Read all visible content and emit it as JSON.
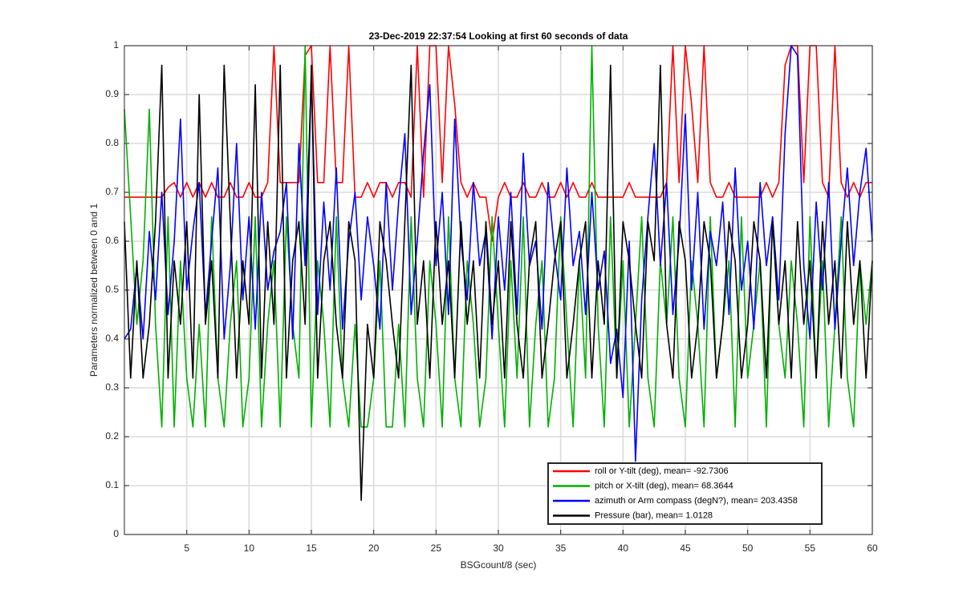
{
  "chart_data": {
    "type": "line",
    "title": "23-Dec-2019 22:37:54 Looking at first 60 seconds of data",
    "x_label": "BSGcount/8 (sec)",
    "y_label": "Parameters normalized between 0 and 1",
    "xlim": [
      0,
      60
    ],
    "xticks": [
      5,
      10,
      15,
      20,
      25,
      30,
      35,
      40,
      45,
      50,
      55,
      60
    ],
    "ylim": [
      0,
      1
    ],
    "yticks": [
      0,
      0.1,
      0.2,
      0.3,
      0.4,
      0.5,
      0.6,
      0.7,
      0.8,
      0.9,
      1
    ],
    "grid": true,
    "legend": "lower right",
    "x": [
      0,
      0.5,
      1,
      1.5,
      2,
      2.5,
      3,
      3.5,
      4,
      4.5,
      5,
      5.5,
      6,
      6.5,
      7,
      7.5,
      8,
      8.5,
      9,
      9.5,
      10,
      10.5,
      11,
      11.5,
      12,
      12.5,
      13,
      13.5,
      14,
      14.5,
      15,
      15.5,
      16,
      16.5,
      17,
      17.5,
      18,
      18.5,
      19,
      19.5,
      20,
      20.5,
      21,
      21.5,
      22,
      22.5,
      23,
      23.5,
      24,
      24.5,
      25,
      25.5,
      26,
      26.5,
      27,
      27.5,
      28,
      28.5,
      29,
      29.5,
      30,
      30.5,
      31,
      31.5,
      32,
      32.5,
      33,
      33.5,
      34,
      34.5,
      35,
      35.5,
      36,
      36.5,
      37,
      37.5,
      38,
      38.5,
      39,
      39.5,
      40,
      40.5,
      41,
      41.5,
      42,
      42.5,
      43,
      43.5,
      44,
      44.5,
      45,
      45.5,
      46,
      46.5,
      47,
      47.5,
      48,
      48.5,
      49,
      49.5,
      50,
      50.5,
      51,
      51.5,
      52,
      52.5,
      53,
      53.5,
      54,
      54.5,
      55,
      55.5,
      56,
      56.5,
      57,
      57.5,
      58,
      58.5,
      59,
      59.5,
      60
    ],
    "series": [
      {
        "name": "roll or Y-tilt (deg), mean= -92.7306",
        "color": "#ff0000",
        "values": [
          0.69,
          0.69,
          0.69,
          0.69,
          0.69,
          0.69,
          0.69,
          0.71,
          0.72,
          0.69,
          0.72,
          0.69,
          0.72,
          0.69,
          0.72,
          0.69,
          0.69,
          0.72,
          0.69,
          0.69,
          0.72,
          0.69,
          0.69,
          0.72,
          1,
          0.72,
          0.72,
          0.72,
          0.72,
          0.98,
          1,
          0.72,
          0.72,
          1,
          0.72,
          0.72,
          1,
          0.69,
          0.69,
          0.72,
          0.69,
          0.72,
          0.72,
          0.69,
          0.72,
          0.72,
          0.69,
          1,
          0.69,
          1,
          1,
          0.72,
          1,
          0.88,
          0.72,
          0.69,
          0.72,
          0.69,
          0.69,
          0.6,
          0.69,
          0.72,
          0.69,
          0.69,
          0.72,
          0.69,
          0.69,
          0.72,
          0.69,
          0.69,
          0.72,
          0.69,
          0.72,
          0.69,
          0.69,
          0.72,
          0.69,
          0.69,
          0.69,
          0.69,
          0.69,
          0.72,
          0.69,
          0.69,
          0.69,
          0.69,
          0.69,
          0.72,
          1,
          0.72,
          1,
          0.88,
          0.72,
          1,
          0.72,
          0.69,
          0.69,
          0.72,
          0.69,
          0.69,
          0.69,
          0.69,
          0.69,
          0.72,
          0.69,
          0.72,
          0.96,
          1,
          1,
          0.72,
          1,
          1,
          0.72,
          0.69,
          1,
          0.72,
          0.69,
          0.72,
          0.69,
          0.72,
          0.72
        ]
      },
      {
        "name": "pitch or X-tilt (deg), mean= 68.3644",
        "color": "#00b000",
        "values": [
          0.87,
          0.65,
          0.43,
          0.56,
          0.87,
          0.43,
          0.22,
          0.65,
          0.22,
          0.56,
          0.32,
          0.22,
          0.43,
          0.22,
          0.65,
          0.32,
          0.22,
          0.43,
          0.56,
          0.22,
          0.32,
          0.65,
          0.22,
          0.43,
          0.56,
          0.22,
          0.65,
          0.43,
          0.32,
          1,
          0.22,
          0.56,
          0.43,
          0.22,
          0.65,
          0.32,
          0.22,
          0.43,
          0.22,
          0.22,
          0.32,
          0.56,
          0.22,
          0.22,
          0.43,
          0.22,
          0.65,
          0.32,
          0.22,
          0.56,
          0.43,
          0.22,
          0.65,
          0.32,
          0.22,
          0.56,
          0.43,
          0.22,
          0.32,
          0.65,
          0.43,
          0.22,
          0.56,
          0.32,
          0.65,
          0.22,
          0.43,
          0.56,
          0.22,
          0.32,
          0.65,
          0.43,
          0.22,
          0.56,
          0.32,
          1,
          0.43,
          0.22,
          0.65,
          0.32,
          0.56,
          0.22,
          0.43,
          0.65,
          0.32,
          0.22,
          0.56,
          0.43,
          0.65,
          0.32,
          0.22,
          0.56,
          0.43,
          0.22,
          0.65,
          0.32,
          0.43,
          0.56,
          0.22,
          0.65,
          0.32,
          0.43,
          0.56,
          0.22,
          0.65,
          0.43,
          0.32,
          0.56,
          0.43,
          0.22,
          0.65,
          0.32,
          0.56,
          0.22,
          0.43,
          0.65,
          0.32,
          0.22,
          0.56,
          0.43,
          0.56
        ]
      },
      {
        "name": "azimuth or Arm compass (degN?), mean= 203.4358",
        "color": "#0000ff",
        "values": [
          0.4,
          0.42,
          0.55,
          0.4,
          0.62,
          0.48,
          0.7,
          0.45,
          0.6,
          0.85,
          0.5,
          0.62,
          0.72,
          0.45,
          0.6,
          0.75,
          0.4,
          0.55,
          0.8,
          0.48,
          0.65,
          0.42,
          0.7,
          0.5,
          0.58,
          0.62,
          0.72,
          0.4,
          0.8,
          0.55,
          0.94,
          0.45,
          0.68,
          0.5,
          0.75,
          0.42,
          0.6,
          0.7,
          0.48,
          0.65,
          0.55,
          0.42,
          0.72,
          0.5,
          0.68,
          0.82,
          0.45,
          0.6,
          0.78,
          0.92,
          0.55,
          0.7,
          0.45,
          0.85,
          0.6,
          0.48,
          0.72,
          0.55,
          0.62,
          0.4,
          0.65,
          0.5,
          0.7,
          0.45,
          0.78,
          0.55,
          0.6,
          0.42,
          0.72,
          0.58,
          0.48,
          0.75,
          0.55,
          0.62,
          0.45,
          0.7,
          0.5,
          0.58,
          0.35,
          0.42,
          0.28,
          0.6,
          0.15,
          0.48,
          0.65,
          0.8,
          0.55,
          0.72,
          0.45,
          0.6,
          0.86,
          0.5,
          0.7,
          0.42,
          0.62,
          0.55,
          0.68,
          0.45,
          0.75,
          0.5,
          0.6,
          0.42,
          0.72,
          0.55,
          0.65,
          0.48,
          0.82,
          1,
          0.98,
          0.55,
          0.4,
          0.68,
          0.5,
          0.72,
          0.42,
          0.6,
          0.75,
          0.55,
          0.7,
          0.79,
          0.6
        ]
      },
      {
        "name": "Pressure (bar), mean= 1.0128",
        "color": "#000000",
        "values": [
          0.64,
          0.32,
          0.56,
          0.32,
          0.43,
          0.64,
          0.96,
          0.32,
          0.56,
          0.43,
          0.64,
          0.32,
          0.9,
          0.43,
          0.56,
          0.32,
          0.96,
          0.64,
          0.32,
          0.56,
          0.43,
          0.92,
          0.32,
          0.64,
          0.43,
          0.96,
          0.32,
          0.56,
          0.64,
          0.43,
          0.96,
          0.32,
          0.56,
          0.64,
          0.43,
          0.32,
          0.64,
          0.56,
          0.07,
          0.43,
          0.32,
          0.64,
          0.56,
          0.43,
          0.32,
          0.64,
          0.96,
          0.43,
          0.56,
          0.32,
          0.64,
          0.43,
          0.56,
          0.32,
          0.64,
          0.43,
          0.56,
          0.32,
          0.64,
          0.43,
          0.56,
          0.32,
          0.64,
          0.43,
          0.32,
          0.56,
          0.64,
          0.32,
          0.43,
          0.56,
          0.64,
          0.32,
          0.43,
          0.56,
          0.64,
          0.32,
          0.56,
          0.43,
          0.96,
          0.32,
          0.64,
          0.56,
          0.43,
          0.32,
          0.64,
          0.56,
          0.96,
          0.43,
          0.32,
          0.64,
          0.56,
          0.32,
          0.43,
          0.64,
          0.56,
          0.32,
          0.43,
          0.64,
          0.56,
          0.32,
          0.43,
          0.64,
          0.56,
          0.32,
          0.64,
          0.43,
          0.56,
          0.32,
          0.64,
          0.43,
          0.56,
          0.32,
          0.64,
          0.43,
          0.56,
          0.32,
          0.64,
          0.43,
          0.56,
          0.32,
          0.56
        ]
      }
    ]
  }
}
